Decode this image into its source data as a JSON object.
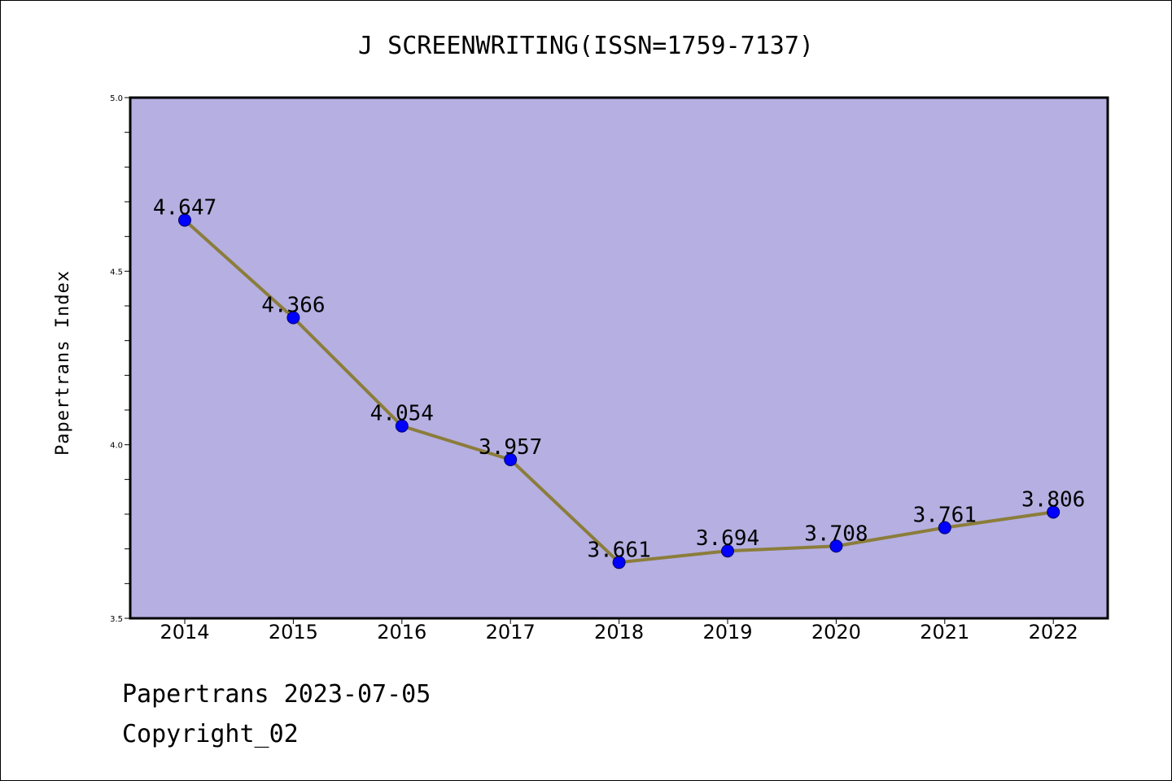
{
  "footer": {
    "line1": "Papertrans 2023-07-05",
    "line2": "Copyright_02"
  },
  "chart_data": {
    "type": "line",
    "title": "J SCREENWRITING(ISSN=1759-7137)",
    "xlabel": "",
    "ylabel": "Papertrans Index",
    "categories": [
      "2014",
      "2015",
      "2016",
      "2017",
      "2018",
      "2019",
      "2020",
      "2021",
      "2022"
    ],
    "values": [
      4.647,
      4.366,
      4.054,
      3.957,
      3.661,
      3.694,
      3.708,
      3.761,
      3.806
    ],
    "value_labels": [
      "4.647",
      "4.366",
      "4.054",
      "3.957",
      "3.661",
      "3.694",
      "3.708",
      "3.761",
      "3.806"
    ],
    "ylim": [
      3.5,
      5.0
    ],
    "yticks": [
      "3.5",
      "4.0",
      "4.5",
      "5.0"
    ],
    "minor_ytick_step": 0.1,
    "grid": false,
    "colors": {
      "plot_background": "#b5afe2",
      "line": "#8b7d3a",
      "marker": "#0000ff",
      "marker_edge": "#000066"
    }
  }
}
